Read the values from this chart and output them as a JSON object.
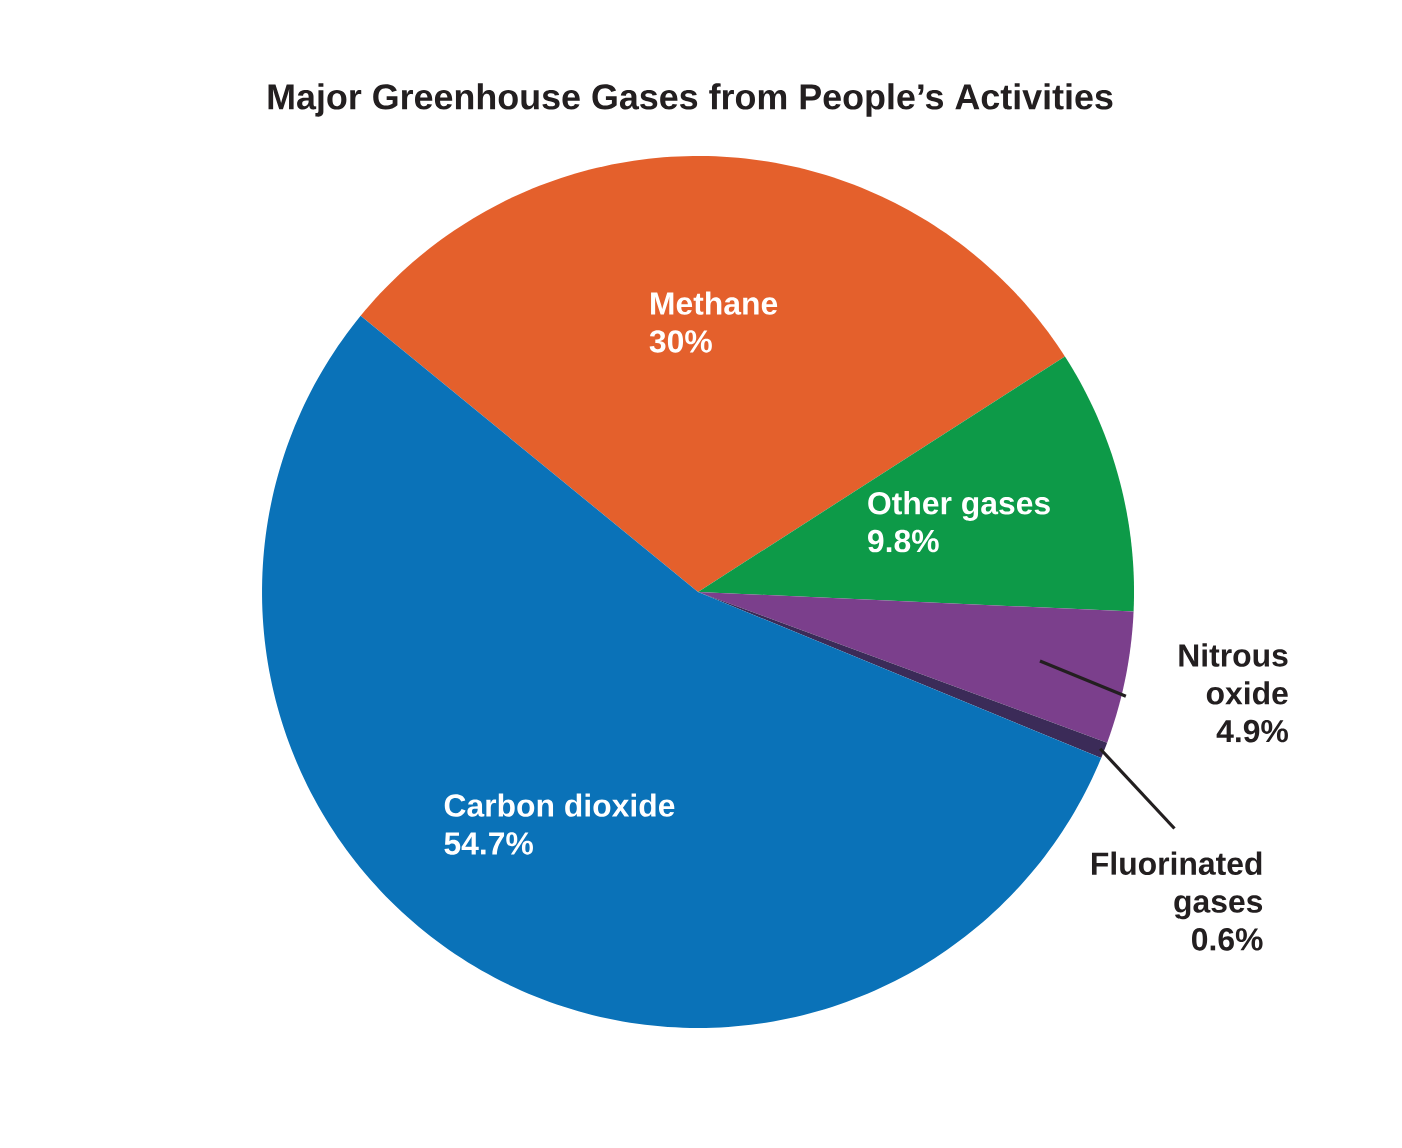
{
  "chart_data": {
    "type": "pie",
    "title": "Major Greenhouse Gases from People’s Activities",
    "categories": [
      "Methane",
      "Other gases",
      "Nitrous oxide",
      "Fluorinated gases",
      "Carbon dioxide"
    ],
    "values": [
      30,
      9.8,
      4.9,
      0.6,
      54.7
    ],
    "value_labels": [
      "30%",
      "9.8%",
      "4.9%",
      "0.6%",
      "54.7%"
    ],
    "colors": [
      "#e4602c",
      "#0d9a48",
      "#7b3f8c",
      "#3b2b58",
      "#0a72b8"
    ]
  }
}
